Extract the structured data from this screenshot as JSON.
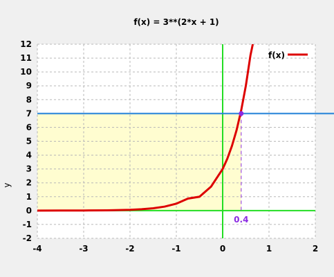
{
  "chart_data": {
    "type": "line",
    "title": "f(x) = 3**(2*x + 1)",
    "xlabel": "",
    "ylabel": "y",
    "xlim": [
      -4,
      2
    ],
    "ylim": [
      -2,
      12
    ],
    "x_ticks": [
      -4,
      -3,
      -2,
      -1,
      0,
      1,
      2
    ],
    "y_ticks": [
      -2,
      -1,
      0,
      1,
      2,
      3,
      4,
      5,
      6,
      7,
      8,
      9,
      10,
      11,
      12
    ],
    "x_tick_labels": [
      "-4",
      "-3",
      "-2",
      "-1",
      "0",
      "1",
      "2"
    ],
    "y_tick_labels": [
      "-2",
      "-1",
      "0",
      "1",
      "2",
      "3",
      "4",
      "5",
      "6",
      "7",
      "8",
      "9",
      "10",
      "11",
      "12"
    ],
    "grid": true,
    "legend_position": "top-right",
    "series": [
      {
        "name": "f(x)",
        "color": "#dd0000",
        "x": [
          -4.0,
          -3.5,
          -3.0,
          -2.5,
          -2.0,
          -1.75,
          -1.5,
          -1.25,
          -1.0,
          -0.75,
          -0.5,
          -0.25,
          0.0,
          0.1,
          0.2,
          0.3,
          0.4,
          0.5,
          0.6,
          0.65
        ],
        "y": [
          0.0007,
          0.0021,
          0.0062,
          0.0185,
          0.0556,
          0.0962,
          0.1667,
          0.2887,
          0.5,
          0.866,
          1.0,
          1.732,
          3.0,
          3.74,
          4.66,
          5.8,
          7.23,
          9.0,
          11.2,
          12.0
        ]
      }
    ],
    "reference_lines": {
      "horizontal": {
        "y": 7,
        "color": "#1e7fd8"
      },
      "x_axis_color": "#22dd22",
      "y_axis_color": "#22dd22"
    },
    "highlight": {
      "x": 0.4,
      "y": 7,
      "label": "0.4",
      "point_color": "#8b2be2",
      "region_color": "#fffdd0"
    }
  }
}
